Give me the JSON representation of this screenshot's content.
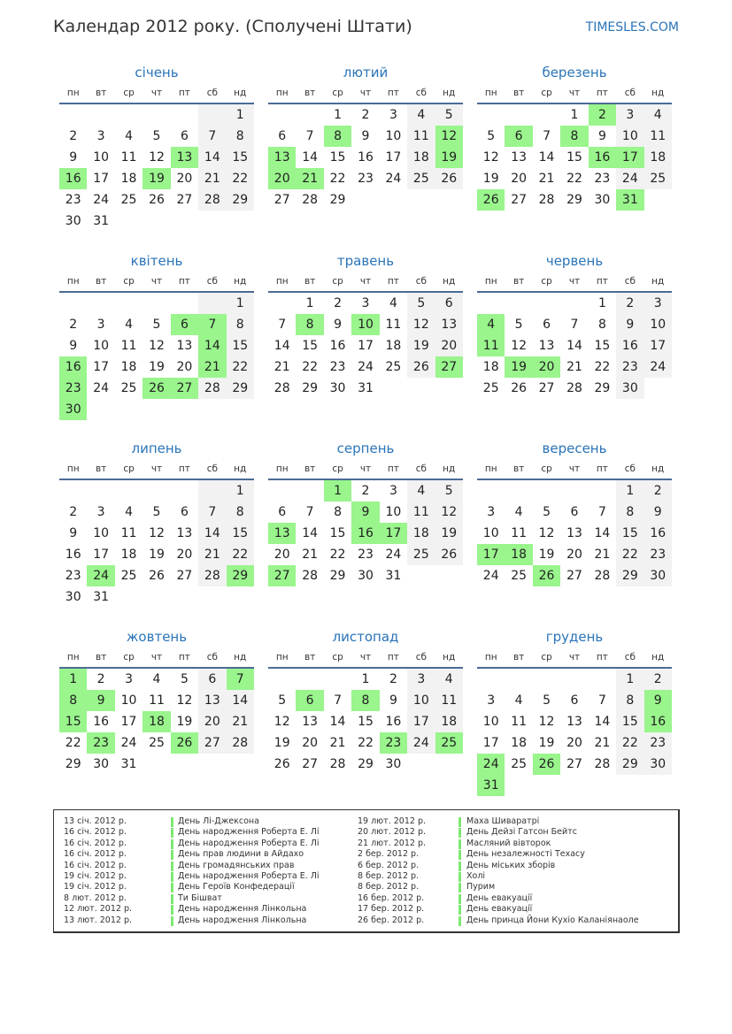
{
  "title": "Календар 2012 року. (Сполучені Штати)",
  "site": "TIMESLES.COM",
  "year": 2012,
  "colors": {
    "accent": "#2a74b8",
    "holiday": "#99f58c",
    "weekend": "#f2f2f2"
  },
  "weekdays": [
    "пн",
    "вт",
    "ср",
    "чт",
    "пт",
    "сб",
    "нд"
  ],
  "months": [
    {
      "name": "січень",
      "holidays": [
        13,
        16,
        19
      ]
    },
    {
      "name": "лютий",
      "holidays": [
        8,
        12,
        13,
        19,
        20,
        21
      ]
    },
    {
      "name": "березень",
      "holidays": [
        2,
        6,
        8,
        16,
        17,
        26,
        31
      ]
    },
    {
      "name": "квітень",
      "holidays": [
        6,
        7,
        14,
        16,
        21,
        23,
        26,
        27,
        30
      ]
    },
    {
      "name": "травень",
      "holidays": [
        8,
        10,
        27
      ]
    },
    {
      "name": "червень",
      "holidays": [
        4,
        11,
        19,
        20
      ]
    },
    {
      "name": "липень",
      "holidays": [
        24,
        29
      ]
    },
    {
      "name": "серпень",
      "holidays": [
        1,
        9,
        13,
        16,
        17,
        27
      ]
    },
    {
      "name": "вересень",
      "holidays": [
        17,
        18,
        26
      ]
    },
    {
      "name": "жовтень",
      "holidays": [
        1,
        7,
        8,
        9,
        15,
        18,
        23,
        26
      ]
    },
    {
      "name": "листопад",
      "holidays": [
        6,
        8,
        23,
        25
      ]
    },
    {
      "name": "грудень",
      "holidays": [
        9,
        16,
        24,
        26,
        31
      ]
    }
  ],
  "legend": [
    [
      {
        "date": "13 січ. 2012 р.",
        "name": "День Лі-Джексона"
      },
      {
        "date": "16 січ. 2012 р.",
        "name": "День народження Роберта Е. Лі"
      },
      {
        "date": "16 січ. 2012 р.",
        "name": "День народження Роберта Е. Лі"
      },
      {
        "date": "16 січ. 2012 р.",
        "name": "День прав людини в Айдахо"
      },
      {
        "date": "16 січ. 2012 р.",
        "name": "День громадянських прав"
      },
      {
        "date": "19 січ. 2012 р.",
        "name": "День народження Роберта Е. Лі"
      },
      {
        "date": "19 січ. 2012 р.",
        "name": "День Героїв Конфедерації"
      },
      {
        "date": "8 лют. 2012 р.",
        "name": "Ти Бішват"
      },
      {
        "date": "12 лют. 2012 р.",
        "name": "День народження Лінкольна"
      },
      {
        "date": "13 лют. 2012 р.",
        "name": "День народження Лінкольна"
      }
    ],
    [
      {
        "date": "19 лют. 2012 р.",
        "name": "Маха Шиваратрі"
      },
      {
        "date": "20 лют. 2012 р.",
        "name": "День Дейзі Гатсон Бейтс"
      },
      {
        "date": "21 лют. 2012 р.",
        "name": "Масляний вівторок"
      },
      {
        "date": "2 бер. 2012 р.",
        "name": "День незалежності Техасу"
      },
      {
        "date": "6 бер. 2012 р.",
        "name": "День міських зборів"
      },
      {
        "date": "8 бер. 2012 р.",
        "name": "Холі"
      },
      {
        "date": "8 бер. 2012 р.",
        "name": "Пурим"
      },
      {
        "date": "16 бер. 2012 р.",
        "name": "День евакуації"
      },
      {
        "date": "17 бер. 2012 р.",
        "name": "День евакуації"
      },
      {
        "date": "26 бер. 2012 р.",
        "name": "День принца Йони Кухіо Каланіянаоле"
      }
    ]
  ]
}
